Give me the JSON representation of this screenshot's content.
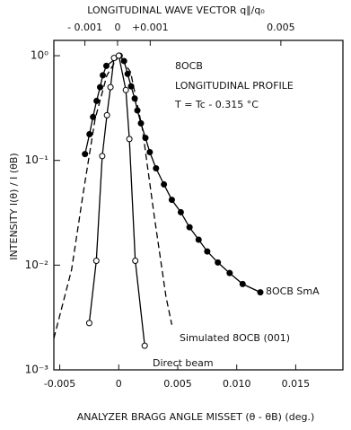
{
  "chart_data": {
    "type": "line",
    "title_top_axis": "LONGITUDINAL WAVE VECTOR q∥/q₀",
    "x_label": "ANALYZER BRAGG ANGLE MISSET (θ - θB) (deg.)",
    "y_label": "INTENSITY  I(θ) / I (θB)",
    "annotations": [
      "8OCB",
      "LONGITUDINAL PROFILE",
      "T = Tc - 0.315 °C"
    ],
    "log_y": true,
    "xlim": [
      -0.0055,
      0.019
    ],
    "xticks": [
      -0.005,
      0,
      0.005,
      {
        "value": 0.01,
        "label": "0.010"
      },
      0.015
    ],
    "x2lim": [
      -0.00195,
      0.0069
    ],
    "x2ticks": [
      {
        "value": -0.001,
        "label": "- 0.001"
      },
      0,
      {
        "value": 0.001,
        "label": "+0.001"
      },
      0.005
    ],
    "ylim": [
      0.001,
      1.4
    ],
    "yticks": [
      {
        "value": 1,
        "label": "10⁰"
      },
      {
        "value": 0.1,
        "label": "10⁻¹"
      },
      {
        "value": 0.01,
        "label": "10⁻²"
      },
      {
        "value": 0.001,
        "label": "10⁻³"
      }
    ],
    "series": [
      {
        "name": "8OCB SmA",
        "color": "#000000",
        "marker": "filled",
        "dash": false,
        "x": [
          -0.00286,
          -0.00248,
          -0.00218,
          -0.00188,
          -0.00158,
          -0.00135,
          -0.00105,
          8e-05,
          0.00045,
          0.00075,
          0.00105,
          0.00135,
          0.00158,
          0.00188,
          0.00226,
          0.00263,
          0.00316,
          0.00383,
          0.0045,
          0.00526,
          0.006,
          0.00677,
          0.0075,
          0.0084,
          0.0094,
          0.0105,
          0.012
        ],
        "values": [
          0.115,
          0.178,
          0.26,
          0.37,
          0.5,
          0.65,
          0.8,
          1.0,
          0.89,
          0.67,
          0.51,
          0.39,
          0.3,
          0.226,
          0.164,
          0.12,
          0.084,
          0.059,
          0.042,
          0.032,
          0.023,
          0.0175,
          0.0135,
          0.0106,
          0.0084,
          0.0066,
          0.0055
        ]
      },
      {
        "name": "Simulated 8OCB (001)",
        "color": "#000000",
        "marker": null,
        "dash": true,
        "x": [
          -0.0055,
          -0.004,
          -0.003,
          -0.002,
          -0.001,
          0,
          0.001,
          0.002,
          0.003,
          0.004,
          0.0045
        ],
        "values": [
          0.002,
          0.009,
          0.05,
          0.25,
          0.65,
          1.0,
          0.7,
          0.2,
          0.03,
          0.005,
          0.0027
        ]
      },
      {
        "name": "Direct beam",
        "color": "#000000",
        "marker": "open",
        "dash": false,
        "x": [
          -0.0025,
          -0.0019,
          -0.0014,
          -0.001,
          -0.0007,
          -0.0004,
          0,
          0.0006,
          0.0009,
          0.0014,
          0.0022
        ],
        "values": [
          0.0028,
          0.011,
          0.11,
          0.27,
          0.5,
          0.95,
          1.0,
          0.47,
          0.16,
          0.011,
          0.0017
        ]
      }
    ]
  }
}
